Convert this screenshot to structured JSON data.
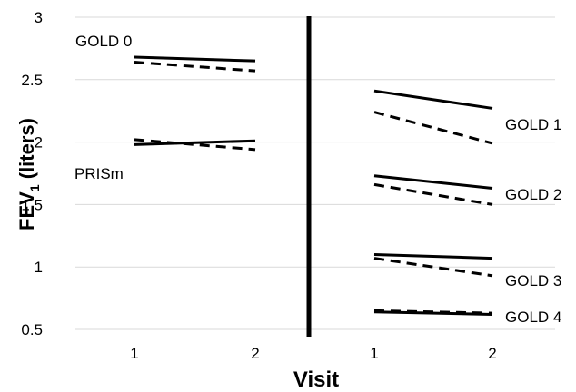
{
  "chart_data": {
    "type": "line",
    "title": "",
    "xlabel": "Visit",
    "ylabel": {
      "main": "FEV",
      "sub": "1",
      "rest": " (liters)"
    },
    "ylim": [
      0.5,
      3
    ],
    "yticks": [
      "0.5",
      "1",
      "1.5",
      "2",
      "2.5",
      "3"
    ],
    "grid": "horizontal",
    "panels": [
      {
        "xticks": [
          "1",
          "2"
        ],
        "groups": [
          {
            "name": "GOLD 0",
            "series": [
              {
                "style": "solid",
                "x": [
                  "1",
                  "2"
                ],
                "values": [
                  2.68,
                  2.65
                ]
              },
              {
                "style": "dashed",
                "x": [
                  "1",
                  "2"
                ],
                "values": [
                  2.64,
                  2.57
                ]
              }
            ]
          },
          {
            "name": "PRISm",
            "series": [
              {
                "style": "solid",
                "x": [
                  "1",
                  "2"
                ],
                "values": [
                  1.98,
                  2.01
                ]
              },
              {
                "style": "dashed",
                "x": [
                  "1",
                  "2"
                ],
                "values": [
                  2.02,
                  1.94
                ]
              }
            ]
          }
        ]
      },
      {
        "xticks": [
          "1",
          "2"
        ],
        "groups": [
          {
            "name": "GOLD 1",
            "series": [
              {
                "style": "solid",
                "x": [
                  "1",
                  "2"
                ],
                "values": [
                  2.41,
                  2.27
                ]
              },
              {
                "style": "dashed",
                "x": [
                  "1",
                  "2"
                ],
                "values": [
                  2.24,
                  1.99
                ]
              }
            ]
          },
          {
            "name": "GOLD 2",
            "series": [
              {
                "style": "solid",
                "x": [
                  "1",
                  "2"
                ],
                "values": [
                  1.73,
                  1.63
                ]
              },
              {
                "style": "dashed",
                "x": [
                  "1",
                  "2"
                ],
                "values": [
                  1.66,
                  1.5
                ]
              }
            ]
          },
          {
            "name": "GOLD 3",
            "series": [
              {
                "style": "solid",
                "x": [
                  "1",
                  "2"
                ],
                "values": [
                  1.1,
                  1.07
                ]
              },
              {
                "style": "dashed",
                "x": [
                  "1",
                  "2"
                ],
                "values": [
                  1.07,
                  0.93
                ]
              }
            ]
          },
          {
            "name": "GOLD 4",
            "series": [
              {
                "style": "solid",
                "x": [
                  "1",
                  "2"
                ],
                "values": [
                  0.64,
                  0.62
                ]
              },
              {
                "style": "dashed",
                "x": [
                  "1",
                  "2"
                ],
                "values": [
                  0.65,
                  0.63
                ]
              }
            ]
          }
        ]
      }
    ]
  }
}
